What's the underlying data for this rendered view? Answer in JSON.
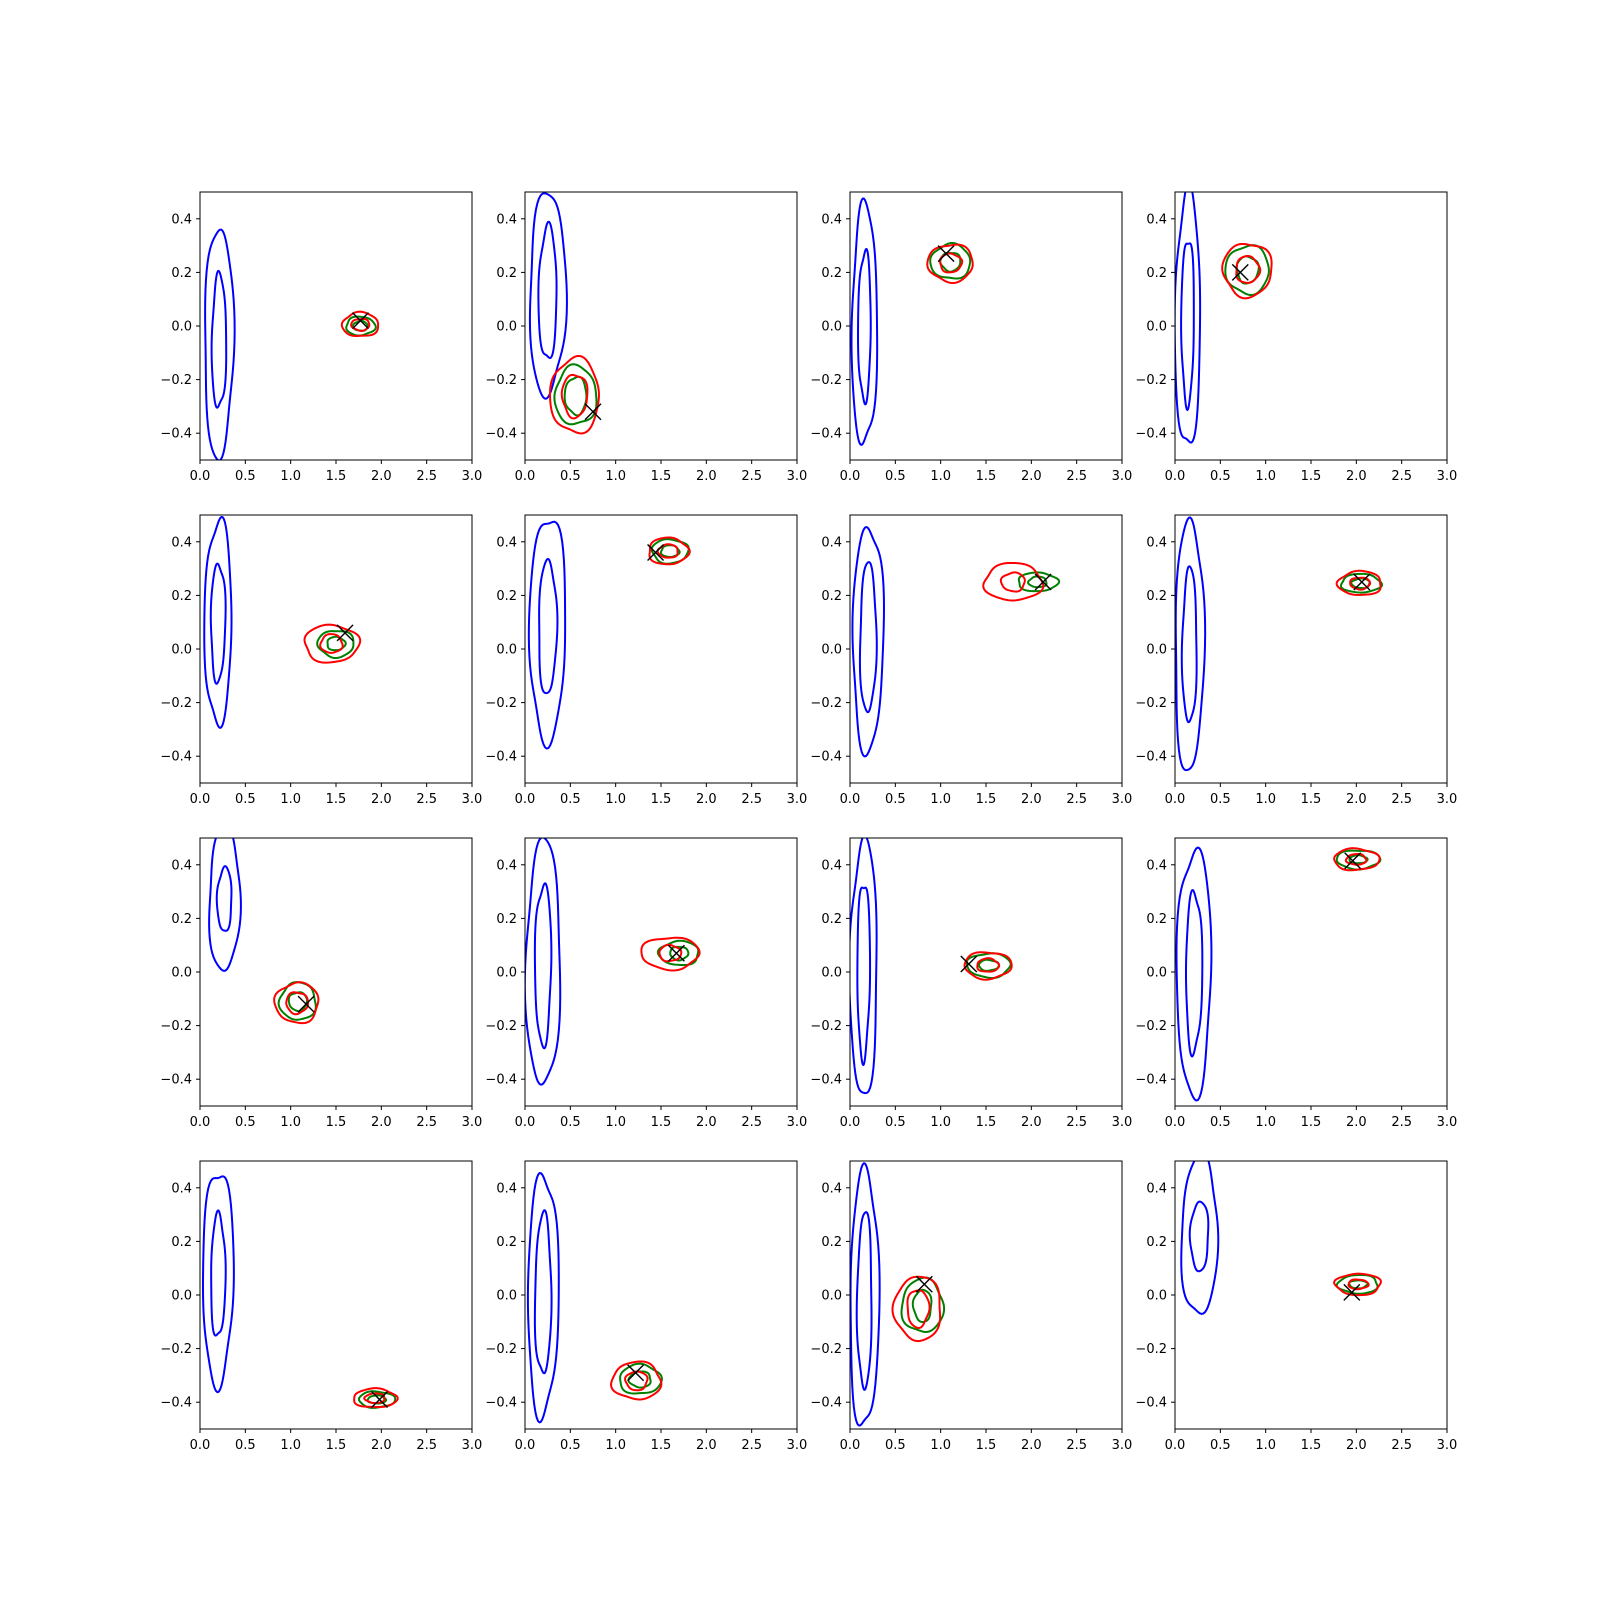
{
  "chart_data": {
    "type": "contour-grid",
    "rows": 4,
    "cols": 4,
    "xlim": [
      0,
      3.0
    ],
    "ylim": [
      -0.5,
      0.5
    ],
    "x_ticks": [
      "0.0",
      "0.5",
      "1.0",
      "1.5",
      "2.0",
      "2.5",
      "3.0"
    ],
    "x_tick_values": [
      0,
      0.5,
      1.0,
      1.5,
      2.0,
      2.5,
      3.0
    ],
    "y_ticks": [
      "−0.4",
      "−0.2",
      "0.0",
      "0.2",
      "0.4"
    ],
    "y_tick_values": [
      -0.4,
      -0.2,
      0.0,
      0.2,
      0.4
    ],
    "colors": {
      "blue": "#0000ff",
      "green": "#008000",
      "red": "#ff0000",
      "marker": "#000000"
    },
    "marker": "x",
    "panels": [
      {
        "blue": {
          "cx": 0.21,
          "cy": -0.06,
          "outer": [
            0.16,
            0.43
          ],
          "inner": [
            0.08,
            0.25
          ]
        },
        "green": {
          "cx": 1.77,
          "cy": 0.0,
          "outer": [
            0.16,
            0.035
          ],
          "inner": [
            0.08,
            0.018
          ]
        },
        "red": {
          "cx": 1.77,
          "cy": 0.005,
          "outer": [
            0.2,
            0.045
          ],
          "inner": [
            0.1,
            0.022
          ]
        },
        "x": [
          1.77,
          0.02
        ]
      },
      {
        "blue": {
          "cx": 0.25,
          "cy": 0.12,
          "outer": [
            0.2,
            0.38
          ],
          "inner": [
            0.1,
            0.25
          ]
        },
        "green": {
          "cx": 0.56,
          "cy": -0.26,
          "outer": [
            0.23,
            0.11
          ],
          "inner": [
            0.12,
            0.07
          ]
        },
        "red": {
          "cx": 0.55,
          "cy": -0.26,
          "outer": [
            0.27,
            0.14
          ],
          "inner": [
            0.14,
            0.08
          ]
        },
        "x": [
          0.75,
          -0.32
        ]
      },
      {
        "blue": {
          "cx": 0.16,
          "cy": 0.0,
          "outer": [
            0.14,
            0.45
          ],
          "inner": [
            0.07,
            0.28
          ]
        },
        "green": {
          "cx": 1.11,
          "cy": 0.24,
          "outer": [
            0.22,
            0.065
          ],
          "inner": [
            0.11,
            0.035
          ]
        },
        "red": {
          "cx": 1.11,
          "cy": 0.235,
          "outer": [
            0.25,
            0.07
          ],
          "inner": [
            0.12,
            0.035
          ]
        },
        "x": [
          1.06,
          0.27
        ]
      },
      {
        "blue": {
          "cx": 0.14,
          "cy": 0.02,
          "outer": [
            0.14,
            0.48
          ],
          "inner": [
            0.07,
            0.31
          ]
        },
        "green": {
          "cx": 0.8,
          "cy": 0.21,
          "outer": [
            0.24,
            0.09
          ],
          "inner": [
            0.12,
            0.05
          ]
        },
        "red": {
          "cx": 0.8,
          "cy": 0.21,
          "outer": [
            0.27,
            0.1
          ],
          "inner": [
            0.13,
            0.05
          ]
        },
        "x": [
          0.72,
          0.2
        ]
      },
      {
        "blue": {
          "cx": 0.2,
          "cy": 0.1,
          "outer": [
            0.15,
            0.38
          ],
          "inner": [
            0.08,
            0.22
          ]
        },
        "green": {
          "cx": 1.5,
          "cy": 0.02,
          "outer": [
            0.2,
            0.05
          ],
          "inner": [
            0.1,
            0.025
          ]
        },
        "red": {
          "cx": 1.45,
          "cy": 0.02,
          "outer": [
            0.3,
            0.07
          ],
          "inner": [
            0.12,
            0.035
          ]
        },
        "x": [
          1.6,
          0.06
        ]
      },
      {
        "blue": {
          "cx": 0.25,
          "cy": 0.08,
          "outer": [
            0.2,
            0.42
          ],
          "inner": [
            0.1,
            0.25
          ]
        },
        "green": {
          "cx": 1.6,
          "cy": 0.365,
          "outer": [
            0.2,
            0.045
          ],
          "inner": [
            0.1,
            0.022
          ]
        },
        "red": {
          "cx": 1.58,
          "cy": 0.365,
          "outer": [
            0.22,
            0.05
          ],
          "inner": [
            0.11,
            0.025
          ]
        },
        "x": [
          1.44,
          0.36
        ]
      },
      {
        "blue": {
          "cx": 0.2,
          "cy": 0.04,
          "outer": [
            0.17,
            0.42
          ],
          "inner": [
            0.09,
            0.28
          ]
        },
        "green": {
          "cx": 2.07,
          "cy": 0.25,
          "outer": [
            0.22,
            0.035
          ],
          "inner": [
            0.1,
            0.02
          ]
        },
        "red": {
          "cx": 1.8,
          "cy": 0.25,
          "outer": [
            0.32,
            0.07
          ],
          "inner": [
            0.13,
            0.035
          ]
        },
        "x": [
          2.13,
          0.25
        ]
      },
      {
        "blue": {
          "cx": 0.16,
          "cy": 0.01,
          "outer": [
            0.16,
            0.47
          ],
          "inner": [
            0.08,
            0.29
          ]
        },
        "green": {
          "cx": 2.05,
          "cy": 0.245,
          "outer": [
            0.22,
            0.035
          ],
          "inner": [
            0.1,
            0.018
          ]
        },
        "red": {
          "cx": 2.04,
          "cy": 0.245,
          "outer": [
            0.24,
            0.045
          ],
          "inner": [
            0.11,
            0.022
          ]
        },
        "x": [
          2.06,
          0.25
        ]
      },
      {
        "blue": {
          "cx": 0.27,
          "cy": 0.27,
          "outer": [
            0.17,
            0.27
          ],
          "inner": [
            0.08,
            0.12
          ]
        },
        "green": {
          "cx": 1.08,
          "cy": -0.11,
          "outer": [
            0.2,
            0.07
          ],
          "inner": [
            0.1,
            0.035
          ]
        },
        "red": {
          "cx": 1.07,
          "cy": -0.115,
          "outer": [
            0.24,
            0.075
          ],
          "inner": [
            0.12,
            0.04
          ]
        },
        "x": [
          1.17,
          -0.12
        ]
      },
      {
        "blue": {
          "cx": 0.2,
          "cy": 0.03,
          "outer": [
            0.19,
            0.46
          ],
          "inner": [
            0.09,
            0.3
          ]
        },
        "green": {
          "cx": 1.7,
          "cy": 0.07,
          "outer": [
            0.22,
            0.045
          ],
          "inner": [
            0.1,
            0.025
          ]
        },
        "red": {
          "cx": 1.6,
          "cy": 0.07,
          "outer": [
            0.32,
            0.06
          ],
          "inner": [
            0.12,
            0.03
          ]
        },
        "x": [
          1.67,
          0.07
        ]
      },
      {
        "blue": {
          "cx": 0.15,
          "cy": 0.01,
          "outer": [
            0.15,
            0.48
          ],
          "inner": [
            0.07,
            0.33
          ]
        },
        "green": {
          "cx": 1.53,
          "cy": 0.025,
          "outer": [
            0.24,
            0.045
          ],
          "inner": [
            0.11,
            0.02
          ]
        },
        "red": {
          "cx": 1.52,
          "cy": 0.025,
          "outer": [
            0.26,
            0.05
          ],
          "inner": [
            0.12,
            0.025
          ]
        },
        "x": [
          1.31,
          0.03
        ]
      },
      {
        "blue": {
          "cx": 0.21,
          "cy": 0.0,
          "outer": [
            0.19,
            0.46
          ],
          "inner": [
            0.09,
            0.3
          ]
        },
        "green": {
          "cx": 2.02,
          "cy": 0.42,
          "outer": [
            0.24,
            0.035
          ],
          "inner": [
            0.1,
            0.015
          ]
        },
        "red": {
          "cx": 2.0,
          "cy": 0.42,
          "outer": [
            0.25,
            0.04
          ],
          "inner": [
            0.11,
            0.02
          ]
        },
        "x": [
          1.96,
          0.415
        ]
      },
      {
        "blue": {
          "cx": 0.2,
          "cy": 0.07,
          "outer": [
            0.17,
            0.4
          ],
          "inner": [
            0.08,
            0.23
          ]
        },
        "green": {
          "cx": 1.95,
          "cy": -0.39,
          "outer": [
            0.2,
            0.03
          ],
          "inner": [
            0.1,
            0.015
          ]
        },
        "red": {
          "cx": 1.93,
          "cy": -0.385,
          "outer": [
            0.24,
            0.035
          ],
          "inner": [
            0.11,
            0.018
          ]
        },
        "x": [
          1.98,
          -0.39
        ]
      },
      {
        "blue": {
          "cx": 0.2,
          "cy": 0.0,
          "outer": [
            0.17,
            0.45
          ],
          "inner": [
            0.09,
            0.3
          ]
        },
        "green": {
          "cx": 1.27,
          "cy": -0.315,
          "outer": [
            0.23,
            0.055
          ],
          "inner": [
            0.12,
            0.03
          ]
        },
        "red": {
          "cx": 1.23,
          "cy": -0.32,
          "outer": [
            0.27,
            0.07
          ],
          "inner": [
            0.12,
            0.035
          ]
        },
        "x": [
          1.22,
          -0.29
        ]
      },
      {
        "blue": {
          "cx": 0.16,
          "cy": -0.02,
          "outer": [
            0.16,
            0.48
          ],
          "inner": [
            0.08,
            0.33
          ]
        },
        "green": {
          "cx": 0.8,
          "cy": -0.04,
          "outer": [
            0.23,
            0.1
          ],
          "inner": [
            0.1,
            0.06
          ]
        },
        "red": {
          "cx": 0.75,
          "cy": -0.05,
          "outer": [
            0.26,
            0.12
          ],
          "inner": [
            0.12,
            0.07
          ]
        },
        "x": [
          0.82,
          0.04
        ]
      },
      {
        "blue": {
          "cx": 0.27,
          "cy": 0.22,
          "outer": [
            0.2,
            0.3
          ],
          "inner": [
            0.1,
            0.13
          ]
        },
        "green": {
          "cx": 2.02,
          "cy": 0.04,
          "outer": [
            0.22,
            0.035
          ],
          "inner": [
            0.1,
            0.015
          ]
        },
        "red": {
          "cx": 2.02,
          "cy": 0.04,
          "outer": [
            0.25,
            0.04
          ],
          "inner": [
            0.11,
            0.018
          ]
        },
        "x": [
          1.95,
          0.01
        ]
      }
    ]
  }
}
